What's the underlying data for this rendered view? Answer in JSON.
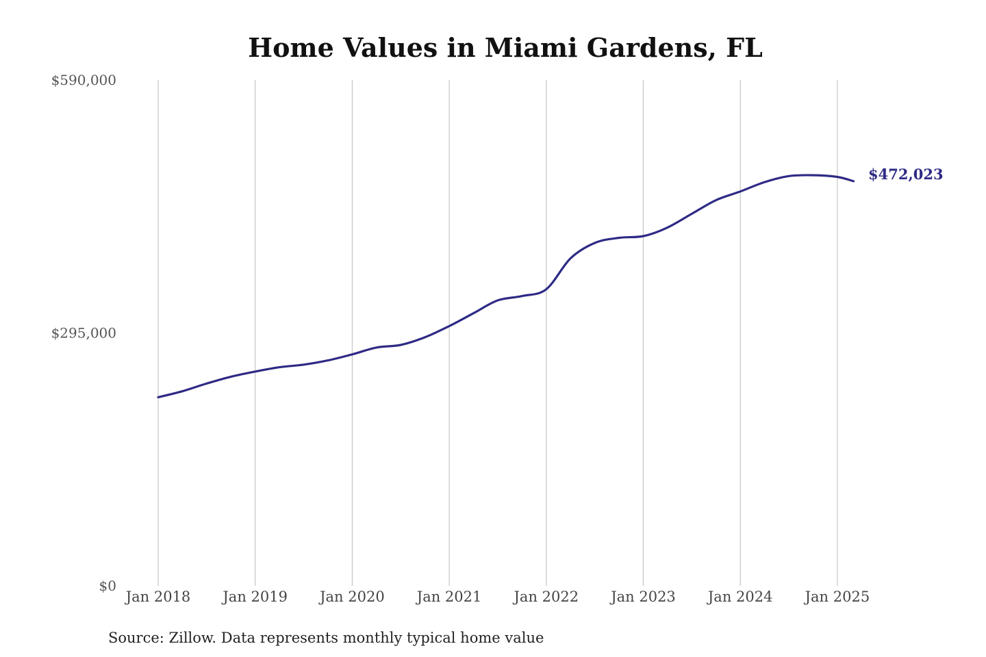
{
  "chart_data": {
    "type": "line",
    "title": "Home Values in Miami Gardens, FL",
    "xlabel": "",
    "ylabel": "",
    "ylim": [
      0,
      590000
    ],
    "y_ticks": [
      {
        "value": 0,
        "label": "$0"
      },
      {
        "value": 295000,
        "label": "$295,000"
      },
      {
        "value": 590000,
        "label": "$590,000"
      }
    ],
    "x_ticks": [
      {
        "value": "2018-01",
        "label": "Jan 2018"
      },
      {
        "value": "2019-01",
        "label": "Jan 2019"
      },
      {
        "value": "2020-01",
        "label": "Jan 2020"
      },
      {
        "value": "2021-01",
        "label": "Jan 2021"
      },
      {
        "value": "2022-01",
        "label": "Jan 2022"
      },
      {
        "value": "2023-01",
        "label": "Jan 2023"
      },
      {
        "value": "2024-01",
        "label": "Jan 2024"
      },
      {
        "value": "2025-01",
        "label": "Jan 2025"
      }
    ],
    "grid": "vertical",
    "line_color": "#2e2a85",
    "series": [
      {
        "x": [
          "2018-01",
          "2018-04",
          "2018-07",
          "2018-10",
          "2019-01",
          "2019-04",
          "2019-07",
          "2019-10",
          "2020-01",
          "2020-04",
          "2020-07",
          "2020-10",
          "2021-01",
          "2021-04",
          "2021-07",
          "2021-10",
          "2022-01",
          "2022-04",
          "2022-07",
          "2022-10",
          "2023-01",
          "2023-04",
          "2023-07",
          "2023-10",
          "2024-01",
          "2024-04",
          "2024-07",
          "2024-10",
          "2025-01",
          "2025-03"
        ],
        "y": [
          220000,
          227000,
          236000,
          244000,
          250000,
          255000,
          258000,
          263000,
          270000,
          278000,
          281000,
          290000,
          303000,
          318000,
          333000,
          338000,
          346000,
          382000,
          400000,
          406000,
          408000,
          418000,
          434000,
          450000,
          460000,
          471000,
          478000,
          479000,
          477000,
          472023
        ]
      }
    ],
    "end_label": "$472,023"
  },
  "footer": {
    "source": "Source: Zillow. Data represents monthly typical home value"
  }
}
